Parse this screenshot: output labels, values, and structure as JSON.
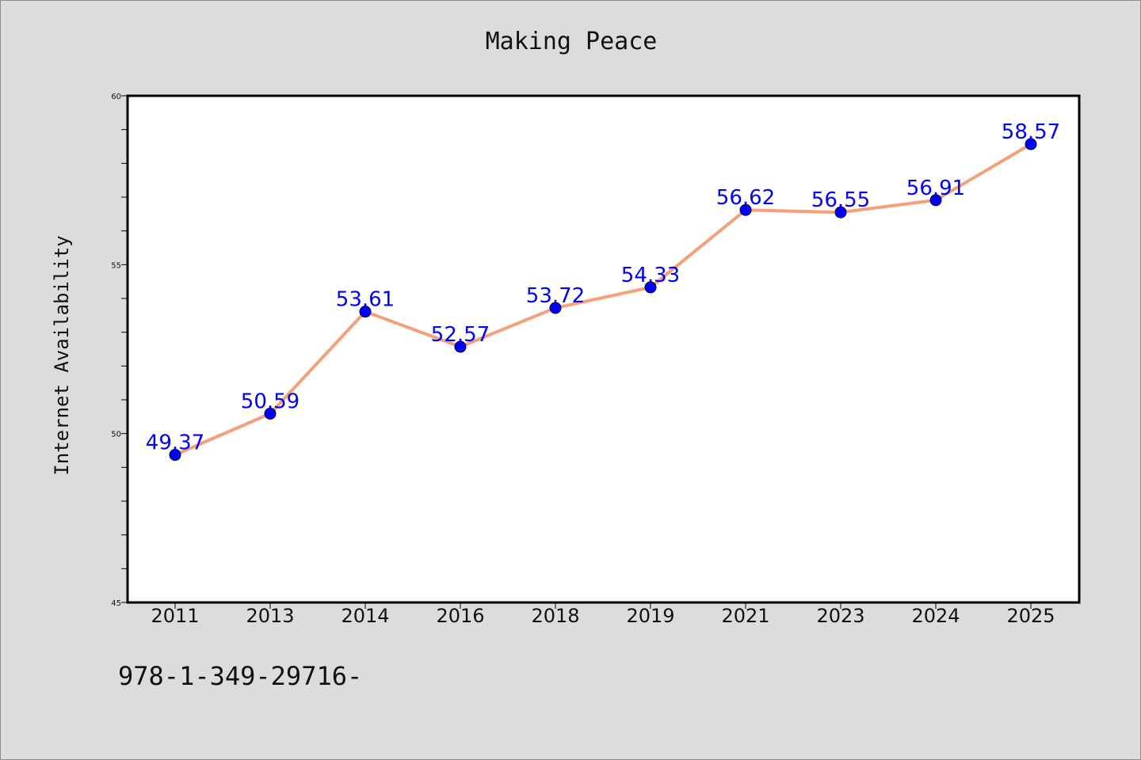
{
  "chart_data": {
    "type": "line",
    "title": "Making Peace",
    "xlabel": "",
    "ylabel": "Internet Availability",
    "categories": [
      "2011",
      "2013",
      "2014",
      "2016",
      "2018",
      "2019",
      "2021",
      "2023",
      "2024",
      "2025"
    ],
    "series": [
      {
        "values": [
          49.37,
          50.59,
          53.61,
          52.57,
          53.72,
          54.33,
          56.62,
          56.55,
          56.91,
          58.57
        ],
        "labels": [
          "49.37",
          "50.59",
          "53.61",
          "52.57",
          "53.72",
          "54.33",
          "56.62",
          "56.55",
          "56.91",
          "58.57"
        ]
      }
    ],
    "ylim": [
      45,
      60
    ],
    "yticks": [
      "45",
      "50",
      "55",
      "60"
    ],
    "grid": false,
    "line_color": "#f4a07a",
    "marker_color": "#0000ff",
    "label_color": "#0000ff"
  },
  "footer": {
    "text": "978-1-349-29716-"
  }
}
